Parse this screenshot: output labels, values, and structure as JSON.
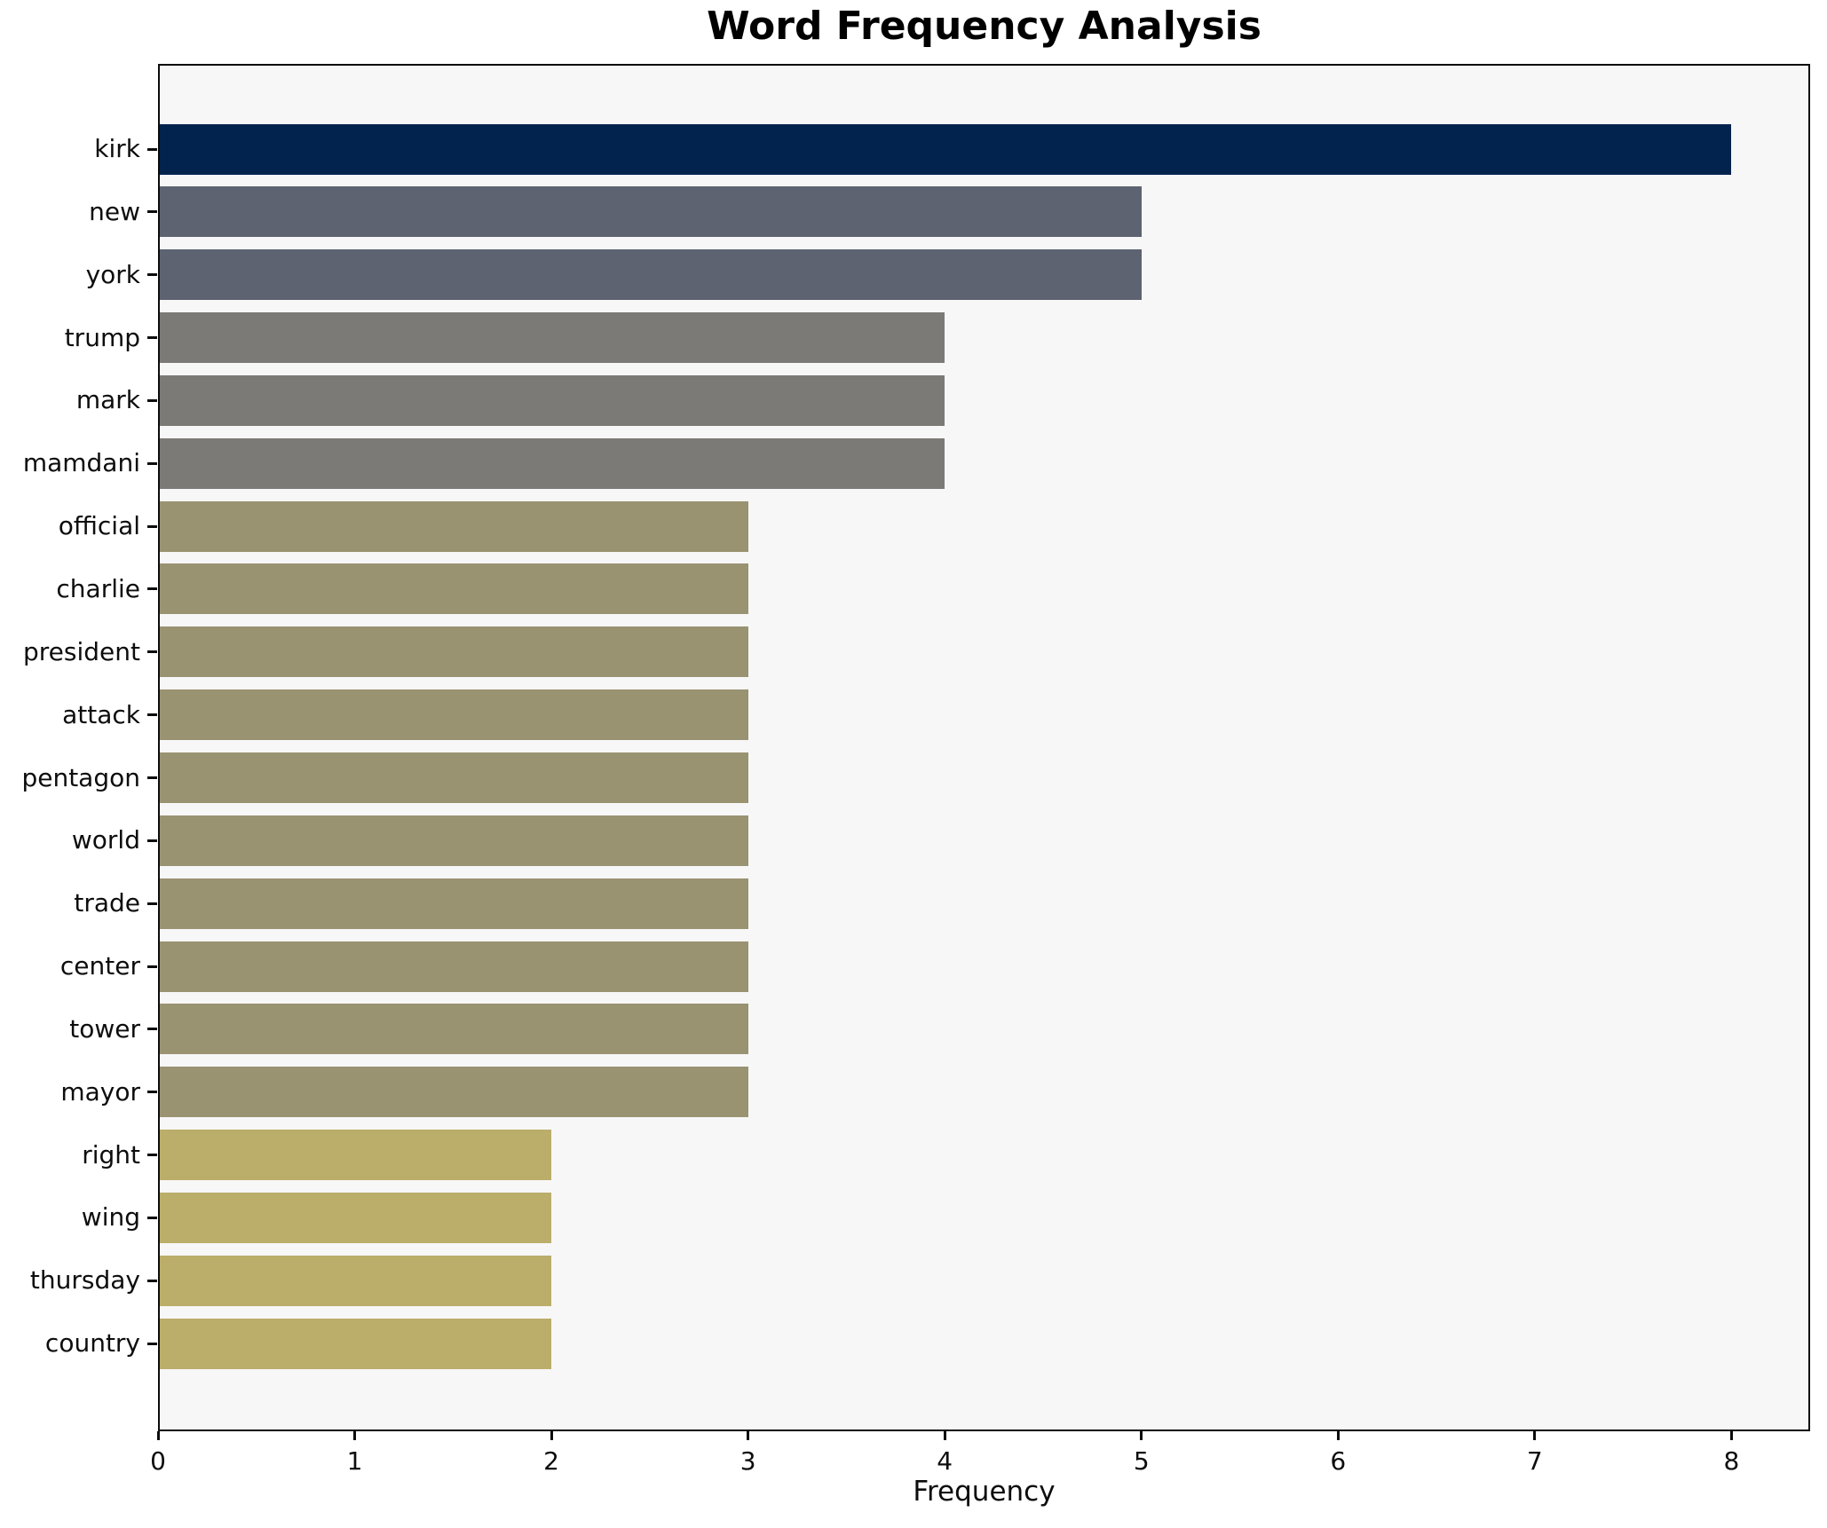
{
  "chart_data": {
    "type": "bar",
    "orientation": "horizontal",
    "title": "Word Frequency Analysis",
    "xlabel": "Frequency",
    "ylabel": "",
    "categories": [
      "kirk",
      "new",
      "york",
      "trump",
      "mark",
      "mamdani",
      "official",
      "charlie",
      "president",
      "attack",
      "pentagon",
      "world",
      "trade",
      "center",
      "tower",
      "mayor",
      "right",
      "wing",
      "thursday",
      "country"
    ],
    "values": [
      8,
      5,
      5,
      4,
      4,
      4,
      3,
      3,
      3,
      3,
      3,
      3,
      3,
      3,
      3,
      3,
      2,
      2,
      2,
      2
    ],
    "bar_colors": [
      "#02234e",
      "#5d6370",
      "#5d6370",
      "#7b7a76",
      "#7b7a76",
      "#7b7a76",
      "#9a9372",
      "#9a9372",
      "#9a9372",
      "#9a9372",
      "#9a9372",
      "#9a9372",
      "#9a9372",
      "#9a9372",
      "#9a9372",
      "#9a9372",
      "#bbad6a",
      "#bbad6a",
      "#bbad6a",
      "#bbad6a"
    ],
    "value_color_map": {
      "8": "#02234e",
      "5": "#5d6370",
      "4": "#7b7a76",
      "3": "#9a9372",
      "2": "#bbad6a"
    },
    "xlim": [
      0,
      8.4
    ],
    "xticks": [
      0,
      1,
      2,
      3,
      4,
      5,
      6,
      7,
      8
    ],
    "grid": false,
    "legend": null,
    "plot_background": "#f7f7f8",
    "figure_background": "#ffffff",
    "spine_color": "#0c0c0c",
    "bar_height_fraction": 0.8
  }
}
